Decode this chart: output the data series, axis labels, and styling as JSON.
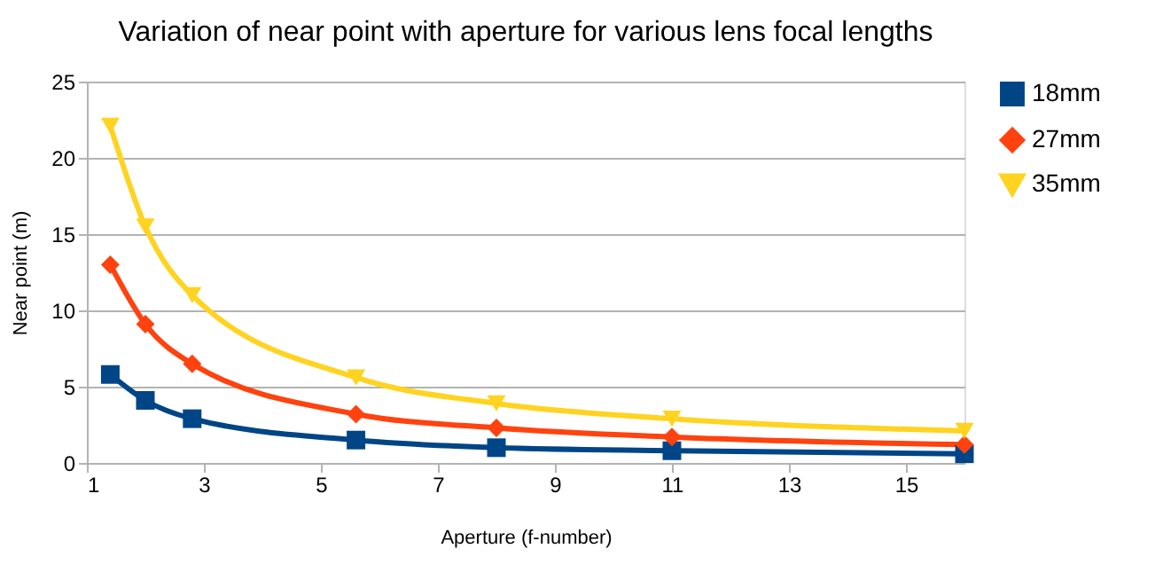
{
  "chart_data": {
    "type": "line",
    "title": "Variation of near point with aperture for various lens focal lengths",
    "xlabel": "Aperture (f-number)",
    "ylabel": "Near point (m)",
    "x": [
      1.4,
      2,
      2.8,
      5.6,
      8,
      11,
      16
    ],
    "series": [
      {
        "name": "18mm",
        "color": "#004586",
        "marker": "square",
        "values": [
          5.8,
          4.1,
          2.9,
          1.5,
          1.0,
          0.8,
          0.6
        ]
      },
      {
        "name": "27mm",
        "color": "#ff420e",
        "marker": "diamond",
        "values": [
          13.0,
          9.1,
          6.5,
          3.2,
          2.3,
          1.7,
          1.2
        ]
      },
      {
        "name": "35mm",
        "color": "#ffd320",
        "marker": "triangle-down",
        "values": [
          22.1,
          15.5,
          11.0,
          5.6,
          3.9,
          2.9,
          2.1
        ]
      }
    ],
    "xlim": [
      1,
      16
    ],
    "xticks": [
      1,
      3,
      5,
      7,
      9,
      11,
      13,
      15
    ],
    "ylim": [
      0,
      25
    ],
    "yticks": [
      0,
      5,
      10,
      15,
      20,
      25
    ],
    "grid": "y",
    "legend": "right",
    "line_style": "solid"
  }
}
